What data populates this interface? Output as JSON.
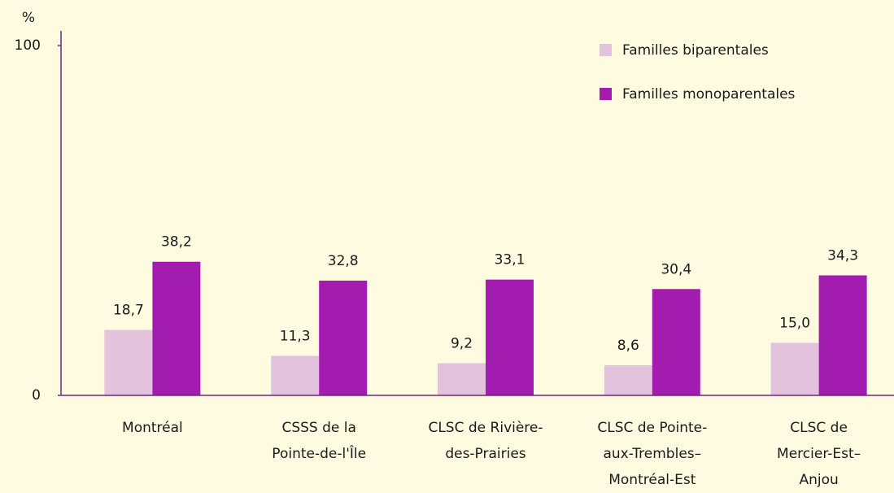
{
  "chart_data": {
    "type": "bar",
    "y_label": "%",
    "categories": [
      [
        "Montréal"
      ],
      [
        "CSSS de la",
        "Pointe-de-l'Île"
      ],
      [
        "CLSC de Rivière-",
        "des-Prairies"
      ],
      [
        "CLSC de Pointe-",
        "aux-Trembles–",
        "Montréal-Est"
      ],
      [
        "CLSC de",
        "Mercier-Est–",
        "Anjou"
      ]
    ],
    "series": [
      {
        "name": "Familles biparentales",
        "color": "#e2c2dd",
        "values": [
          18.7,
          11.3,
          9.2,
          8.6,
          15.0
        ],
        "value_labels": [
          "18,7",
          "11,3",
          "9,2",
          "8,6",
          "15,0"
        ]
      },
      {
        "name": "Familles monoparentales",
        "color": "#a21cb0",
        "values": [
          38.2,
          32.8,
          33.1,
          30.4,
          34.3
        ],
        "value_labels": [
          "38,2",
          "32,8",
          "33,1",
          "30,4",
          "34,3"
        ]
      }
    ],
    "ylim": [
      0,
      100
    ],
    "yticks": [
      0,
      100
    ],
    "grid": false,
    "legend": "top-right"
  }
}
